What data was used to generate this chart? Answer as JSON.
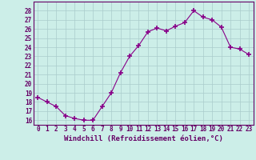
{
  "x": [
    0,
    1,
    2,
    3,
    4,
    5,
    6,
    7,
    8,
    9,
    10,
    11,
    12,
    13,
    14,
    15,
    16,
    17,
    18,
    19,
    20,
    21,
    22,
    23
  ],
  "y": [
    18.5,
    18.0,
    17.5,
    16.5,
    16.2,
    16.0,
    16.0,
    17.5,
    19.0,
    21.2,
    23.0,
    24.2,
    25.7,
    26.1,
    25.8,
    26.3,
    26.7,
    28.0,
    27.3,
    27.0,
    26.2,
    24.0,
    23.8,
    23.2
  ],
  "line_color": "#880088",
  "marker": "+",
  "marker_size": 4,
  "marker_lw": 1.2,
  "bg_color": "#cceee8",
  "grid_color": "#aacccc",
  "xlabel": "Windchill (Refroidissement éolien,°C)",
  "xlim": [
    -0.5,
    23.5
  ],
  "ylim": [
    15.5,
    29
  ],
  "yticks": [
    16,
    17,
    18,
    19,
    20,
    21,
    22,
    23,
    24,
    25,
    26,
    27,
    28
  ],
  "xticks": [
    0,
    1,
    2,
    3,
    4,
    5,
    6,
    7,
    8,
    9,
    10,
    11,
    12,
    13,
    14,
    15,
    16,
    17,
    18,
    19,
    20,
    21,
    22,
    23
  ],
  "tick_label_fontsize": 5.5,
  "xlabel_fontsize": 6.5,
  "axis_label_color": "#660066",
  "tick_color": "#660066",
  "spine_color": "#660066",
  "line_width": 0.8
}
